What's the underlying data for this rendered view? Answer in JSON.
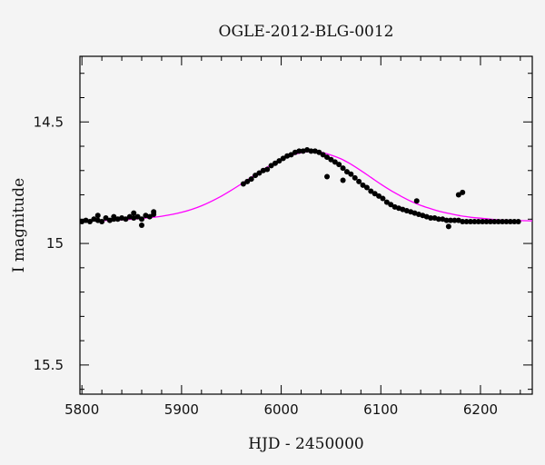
{
  "chart_data": {
    "type": "scatter",
    "title": "OGLE-2012-BLG-0012",
    "xlabel": "HJD - 2450000",
    "ylabel": "I magnitude",
    "xlim": [
      5798,
      6252
    ],
    "ylim": [
      15.62,
      14.23
    ],
    "y_inverted": true,
    "grid": false,
    "x_ticks": [
      "5800",
      "5900",
      "6000",
      "6100",
      "6200"
    ],
    "y_ticks": [
      "14.5",
      "15",
      "15.5"
    ],
    "x_tick_values": [
      5800,
      5900,
      6000,
      6100,
      6200
    ],
    "y_tick_values": [
      14.5,
      15.0,
      15.5
    ],
    "colors": {
      "points": "#000000",
      "model": "#ff00ff",
      "background": "#f4f4f4"
    },
    "series": [
      {
        "kind": "points",
        "x": [
          5800,
          5804,
          5808,
          5812,
          5816,
          5820,
          5824,
          5828,
          5832,
          5836,
          5840,
          5844,
          5848,
          5852,
          5856,
          5860,
          5864,
          5868,
          5872,
          5962,
          5966,
          5970,
          5974,
          5978,
          5982,
          5986,
          5990,
          5994,
          5998,
          6002,
          6006,
          6010,
          6014,
          6018,
          6022,
          6026,
          6030,
          6034,
          6038,
          6042,
          6046,
          6050,
          6054,
          6058,
          6062,
          6066,
          6070,
          6074,
          6078,
          6082,
          6086,
          6090,
          6094,
          6098,
          6102,
          6106,
          6110,
          6114,
          6118,
          6122,
          6126,
          6130,
          6134,
          6138,
          6142,
          6146,
          6150,
          6154,
          6158,
          6162,
          6166,
          6170,
          6174,
          6178,
          6182,
          6186,
          6190,
          6194,
          6198,
          6202,
          6206,
          6210,
          6214,
          6218,
          6222,
          6226,
          6230,
          6234,
          6238,
          5816,
          5832,
          5852,
          5860,
          5872,
          6046,
          6062,
          6168,
          6178,
          6182,
          6136
        ],
        "y": [
          14.91,
          14.905,
          14.91,
          14.9,
          14.905,
          14.91,
          14.895,
          14.905,
          14.9,
          14.9,
          14.895,
          14.9,
          14.89,
          14.895,
          14.89,
          14.9,
          14.885,
          14.89,
          14.88,
          14.755,
          14.745,
          14.735,
          14.72,
          14.71,
          14.7,
          14.695,
          14.68,
          14.67,
          14.66,
          14.65,
          14.64,
          14.635,
          14.625,
          14.62,
          14.62,
          14.615,
          14.62,
          14.62,
          14.625,
          14.635,
          14.645,
          14.655,
          14.665,
          14.675,
          14.69,
          14.705,
          14.715,
          14.73,
          14.745,
          14.76,
          14.77,
          14.785,
          14.795,
          14.805,
          14.815,
          14.83,
          14.84,
          14.85,
          14.855,
          14.86,
          14.865,
          14.87,
          14.875,
          14.88,
          14.885,
          14.89,
          14.895,
          14.895,
          14.9,
          14.9,
          14.905,
          14.905,
          14.905,
          14.905,
          14.91,
          14.91,
          14.91,
          14.91,
          14.91,
          14.91,
          14.91,
          14.91,
          14.91,
          14.91,
          14.91,
          14.91,
          14.91,
          14.91,
          14.91,
          14.885,
          14.89,
          14.875,
          14.925,
          14.87,
          14.725,
          14.74,
          14.93,
          14.8,
          14.79,
          14.825
        ]
      },
      {
        "kind": "model",
        "x": [
          5800,
          5820,
          5840,
          5860,
          5880,
          5900,
          5920,
          5940,
          5960,
          5980,
          6000,
          6010,
          6020,
          6030,
          6040,
          6050,
          6060,
          6070,
          6080,
          6090,
          6100,
          6110,
          6120,
          6130,
          6140,
          6150,
          6160,
          6170,
          6180,
          6190,
          6200,
          6210,
          6220,
          6230,
          6240,
          6252
        ],
        "y": [
          14.908,
          14.906,
          14.903,
          14.897,
          14.888,
          14.872,
          14.845,
          14.805,
          14.755,
          14.7,
          14.655,
          14.638,
          14.627,
          14.622,
          14.625,
          14.636,
          14.652,
          14.674,
          14.7,
          14.728,
          14.756,
          14.782,
          14.805,
          14.826,
          14.843,
          14.857,
          14.869,
          14.878,
          14.886,
          14.892,
          14.896,
          14.9,
          14.903,
          14.905,
          14.906,
          14.907
        ]
      }
    ]
  }
}
